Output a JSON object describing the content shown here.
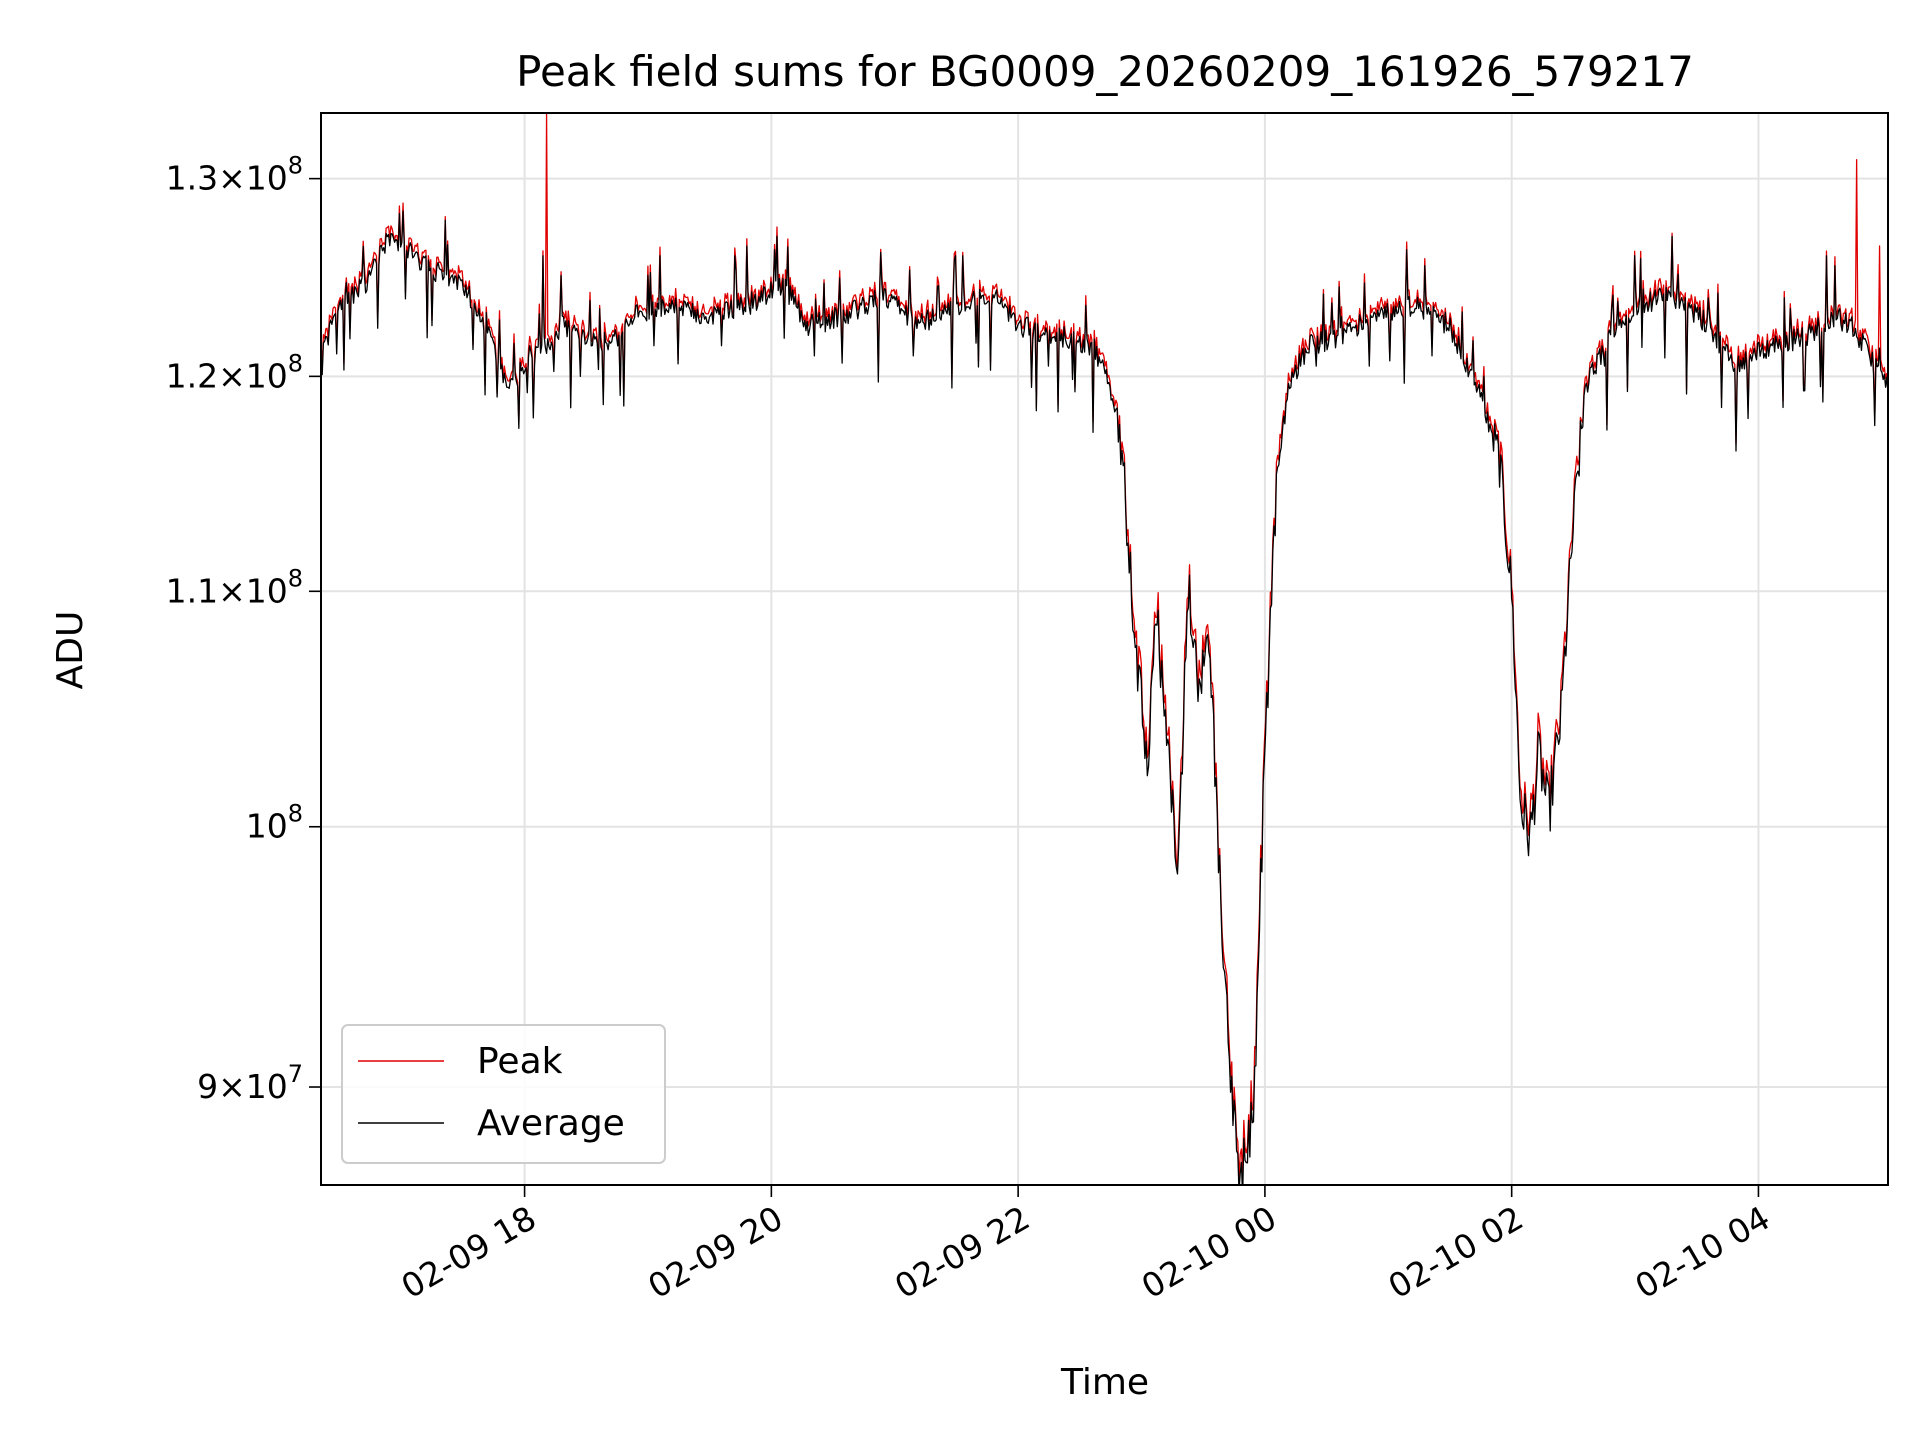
{
  "chart_data": {
    "type": "line",
    "title": "Peak field sums for BG0009_20260209_161926_579217",
    "xlabel": "Time",
    "ylabel": "ADU",
    "yscale": "log",
    "grid": true,
    "legend_position": "lower-left",
    "xlim_hours": [
      16.35,
      29.05
    ],
    "ylim": [
      86500000,
      133500000
    ],
    "x_unit_note": "hours since 2026-02-09 00:00",
    "x_ticks": [
      {
        "value": 18,
        "label": "02-09 18"
      },
      {
        "value": 20,
        "label": "02-09 20"
      },
      {
        "value": 22,
        "label": "02-09 22"
      },
      {
        "value": 24,
        "label": "02-10 00"
      },
      {
        "value": 26,
        "label": "02-10 02"
      },
      {
        "value": 28,
        "label": "02-10 04"
      }
    ],
    "y_ticks": [
      {
        "value": 90000000,
        "mant": "9",
        "times": "×10",
        "exp": "7"
      },
      {
        "value": 100000000,
        "mant": "",
        "times": "10",
        "exp": "8"
      },
      {
        "value": 110000000,
        "mant": "1.1",
        "times": "×10",
        "exp": "8"
      },
      {
        "value": 120000000,
        "mant": "1.2",
        "times": "×10",
        "exp": "8"
      },
      {
        "value": 130000000,
        "mant": "1.3",
        "times": "×10",
        "exp": "8"
      }
    ],
    "anchors": [
      [
        16.35,
        121.0
      ],
      [
        16.5,
        123.5
      ],
      [
        16.7,
        124.5
      ],
      [
        16.9,
        127.0
      ],
      [
        17.2,
        125.5
      ],
      [
        17.5,
        124.5
      ],
      [
        17.7,
        122.5
      ],
      [
        17.85,
        119.5
      ],
      [
        18.1,
        121.0
      ],
      [
        18.3,
        122.5
      ],
      [
        18.5,
        122.0
      ],
      [
        18.7,
        121.5
      ],
      [
        18.9,
        123.0
      ],
      [
        19.2,
        123.5
      ],
      [
        19.5,
        123.0
      ],
      [
        19.8,
        123.5
      ],
      [
        20.1,
        124.5
      ],
      [
        20.3,
        122.5
      ],
      [
        20.6,
        123.0
      ],
      [
        20.9,
        124.0
      ],
      [
        21.2,
        122.5
      ],
      [
        21.5,
        123.5
      ],
      [
        21.8,
        124.0
      ],
      [
        22.0,
        122.5
      ],
      [
        22.3,
        122.0
      ],
      [
        22.6,
        121.5
      ],
      [
        22.75,
        119.5
      ],
      [
        22.85,
        116.0
      ],
      [
        22.95,
        107.0
      ],
      [
        23.05,
        103.0
      ],
      [
        23.12,
        109.0
      ],
      [
        23.2,
        104.0
      ],
      [
        23.3,
        98.0
      ],
      [
        23.38,
        110.5
      ],
      [
        23.45,
        106.0
      ],
      [
        23.55,
        108.0
      ],
      [
        23.62,
        99.0
      ],
      [
        23.7,
        91.5
      ],
      [
        23.78,
        86.8
      ],
      [
        23.85,
        87.2
      ],
      [
        23.92,
        90.5
      ],
      [
        24.0,
        103.0
      ],
      [
        24.1,
        115.5
      ],
      [
        24.2,
        119.5
      ],
      [
        24.35,
        121.5
      ],
      [
        24.6,
        122.0
      ],
      [
        24.9,
        123.0
      ],
      [
        25.2,
        123.5
      ],
      [
        25.5,
        122.5
      ],
      [
        25.75,
        119.0
      ],
      [
        25.9,
        116.0
      ],
      [
        26.0,
        110.0
      ],
      [
        26.07,
        101.0
      ],
      [
        26.15,
        99.5
      ],
      [
        26.22,
        103.0
      ],
      [
        26.3,
        100.5
      ],
      [
        26.4,
        104.5
      ],
      [
        26.5,
        113.0
      ],
      [
        26.6,
        119.5
      ],
      [
        26.8,
        122.0
      ],
      [
        27.0,
        123.5
      ],
      [
        27.3,
        124.0
      ],
      [
        27.6,
        122.5
      ],
      [
        27.8,
        120.5
      ],
      [
        28.1,
        121.5
      ],
      [
        28.4,
        122.0
      ],
      [
        28.6,
        123.0
      ],
      [
        28.75,
        122.5
      ],
      [
        28.9,
        121.0
      ],
      [
        29.05,
        119.5
      ]
    ],
    "dips": [
      [
        17.78,
        119.0
      ],
      [
        17.95,
        117.5
      ],
      [
        18.07,
        118.0
      ],
      [
        18.45,
        120.0
      ],
      [
        19.05,
        121.5
      ],
      [
        19.6,
        121.5
      ],
      [
        20.35,
        121.0
      ],
      [
        21.15,
        121.0
      ],
      [
        22.25,
        120.5
      ],
      [
        24.42,
        120.5
      ],
      [
        24.85,
        120.5
      ],
      [
        25.35,
        121.0
      ],
      [
        26.75,
        120.5
      ],
      [
        27.3,
        120.5
      ],
      [
        27.7,
        118.5
      ],
      [
        28.2,
        118.5
      ],
      [
        28.5,
        119.5
      ]
    ],
    "spikes": [
      [
        16.7,
        125.0
      ],
      [
        17.2,
        126.0
      ],
      [
        18.15,
        126.0
      ],
      [
        18.3,
        125.0
      ],
      [
        19.0,
        125.0
      ],
      [
        19.1,
        126.0
      ],
      [
        19.7,
        126.0
      ],
      [
        19.8,
        126.5
      ],
      [
        20.05,
        127.0
      ],
      [
        21.55,
        126.0
      ],
      [
        25.3,
        125.5
      ],
      [
        27.0,
        126.0
      ],
      [
        27.3,
        127.0
      ],
      [
        28.55,
        126.0
      ],
      [
        28.62,
        125.5
      ]
    ],
    "series": [
      {
        "name": "Peak",
        "color": "#e00000",
        "stroke_width": 1.3,
        "features": "tracks Average slightly above",
        "extra_spikes": [
          [
            18.18,
            133.5
          ],
          [
            28.8,
            131.0
          ],
          [
            28.98,
            126.5
          ]
        ]
      },
      {
        "name": "Average",
        "color": "#000000",
        "stroke_width": 1.3,
        "features": "baseline"
      }
    ],
    "legend": [
      {
        "label": "Peak",
        "color": "#e00000"
      },
      {
        "label": "Average",
        "color": "#000000"
      }
    ]
  }
}
